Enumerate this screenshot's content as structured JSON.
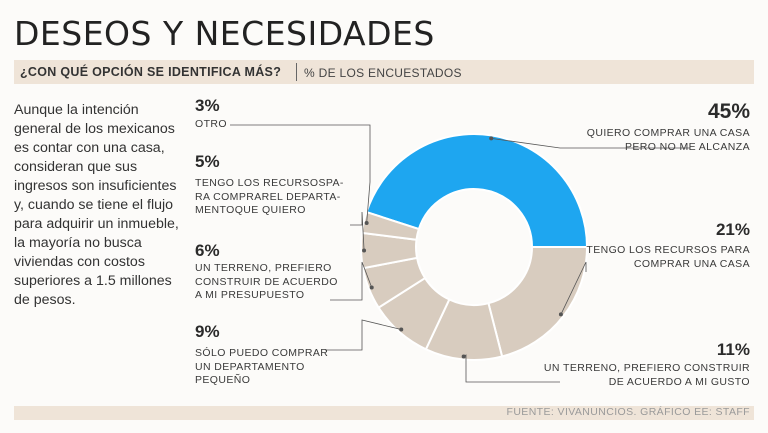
{
  "title": "DESEOS Y NECESIDADES",
  "question": "¿CON QUÉ OPCIÓN SE IDENTIFICA MÁS?",
  "unit": "% DE LOS ENCUESTADOS",
  "intro": "Aunque la intención general de los mexicanos es contar con una casa, consideran que sus ingresos son insuficientes y, cuando se tiene el flujo para adquirir un inmueble, la mayoría no busca viviendas con costos superiores a 1.5 millones de pesos.",
  "source": "FUENTE: VIVANUNCIOS. GRÁFICO EE: STAFF",
  "colors": {
    "highlight": "#1ea6f0",
    "other": "#d8ccbf",
    "separator": "#ffffff",
    "leader": "#555555"
  },
  "chart_data": {
    "type": "pie",
    "variant": "donut",
    "title": "¿CON QUÉ OPCIÓN SE IDENTIFICA MÁS?",
    "unit": "% de los encuestados",
    "slices": [
      {
        "label": "QUIERO COMPRAR UNA CASA PERO NO ME ALCANZA",
        "value": 45,
        "pct": "45%"
      },
      {
        "label": "TENGO LOS RECURSOS PARA COMPRAR UNA CASA",
        "value": 21,
        "pct": "21%"
      },
      {
        "label": "UN TERRENO, PREFIERO CONSTRUIR DE ACUERDO A MI GUSTO",
        "value": 11,
        "pct": "11%"
      },
      {
        "label": "SÓLO PUEDO COMPRAR UN DEPARTAMENTO PEQUEÑO",
        "value": 9,
        "pct": "9%"
      },
      {
        "label": "UN TERRENO, PREFIERO CONSTRUIR DE ACUERDO A MI PRESUPUESTO",
        "value": 6,
        "pct": "6%"
      },
      {
        "label": "TENGO LOS RECURSOSPARA COMPRAREL DEPARTAMENTOQUE QUIERO",
        "value": 5,
        "pct": "5%"
      },
      {
        "label": "OTRO",
        "value": 3,
        "pct": "3%"
      }
    ]
  },
  "labels": [
    {
      "pct": "45%",
      "lines": [
        "QUIERO COMPRAR UNA CASA",
        "PERO NO ME ALCANZA"
      ]
    },
    {
      "pct": "21%",
      "lines": [
        "TENGO LOS RECURSOS PARA",
        "COMPRAR UNA CASA"
      ]
    },
    {
      "pct": "11%",
      "lines": [
        "UN TERRENO, PREFIERO CONSTRUIR",
        "DE ACUERDO A MI GUSTO"
      ]
    },
    {
      "pct": "9%",
      "lines": [
        "SÓLO PUEDO COMPRAR",
        "UN DEPARTAMENTO",
        "PEQUEÑO"
      ]
    },
    {
      "pct": "6%",
      "lines": [
        "UN TERRENO, PREFIERO",
        "CONSTRUIR DE ACUERDO",
        "A MI PRESUPUESTO"
      ]
    },
    {
      "pct": "5%",
      "lines": [
        "TENGO LOS RECURSOSPA-",
        "RA COMPRAREL DEPARTA-",
        "MENTOQUE QUIERO"
      ]
    },
    {
      "pct": "3%",
      "lines": [
        "OTRO"
      ]
    }
  ]
}
